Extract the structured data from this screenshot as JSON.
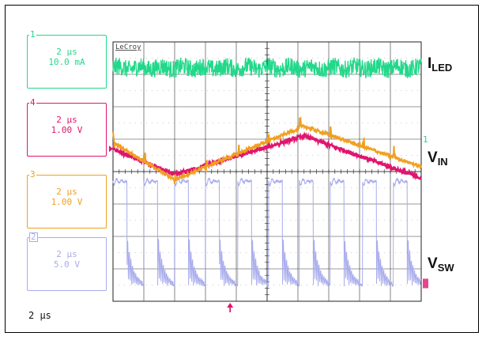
{
  "brand": "LeCroy",
  "timebase": "2 µs",
  "channels": [
    {
      "num": "1",
      "time_div": "2 µs",
      "scale": "10.0 mA",
      "color": "#22d88a"
    },
    {
      "num": "4",
      "time_div": "2 µs",
      "scale": "1.00 V",
      "color": "#e0156e"
    },
    {
      "num": "3",
      "time_div": "2 µs",
      "scale": "1.00 V",
      "color": "#f0a020"
    },
    {
      "num": "2",
      "time_div": "2 µs",
      "scale": "5.0 V",
      "color": "#a8acec"
    }
  ],
  "signal_labels": {
    "iled": {
      "main": "I",
      "sub": "LED"
    },
    "vin": {
      "main": "V",
      "sub": "IN"
    },
    "vsw": {
      "main": "V",
      "sub": "SW"
    }
  },
  "ch1_ref_marker": "1",
  "chart_data": {
    "type": "line",
    "grid": true,
    "divisions": {
      "x": 10,
      "y": 8
    },
    "xlabel": "",
    "ylabel": "",
    "series": [
      {
        "id": "iled",
        "description": "noisy roughly constant LED current",
        "x_div": [
          0,
          10
        ],
        "y_div": [
          7.2,
          7.2
        ],
        "color": "#22d88a"
      },
      {
        "id": "vin_ch4",
        "description": "triangular ripple",
        "x_div": [
          0,
          2.0,
          6.2,
          10
        ],
        "y_div": [
          4.7,
          3.9,
          5.1,
          3.8
        ],
        "color": "#e0156e"
      },
      {
        "id": "vin_ch3",
        "description": "triangular ripple with spikes",
        "x_div": [
          0,
          2.0,
          6.2,
          10
        ],
        "y_div": [
          4.9,
          3.75,
          5.4,
          4.15
        ],
        "color": "#f0a020"
      },
      {
        "id": "vsw",
        "description": "switch node pulses with ringing",
        "pulse_start_div": [
          0.0,
          1.0,
          2.0,
          3.0,
          4.05,
          5.05,
          6.05,
          7.05,
          8.1,
          9.1
        ],
        "pulse_width_div": 0.45,
        "high_div": 3.7,
        "low_div": 0.5,
        "color": "#a8acec"
      }
    ]
  }
}
